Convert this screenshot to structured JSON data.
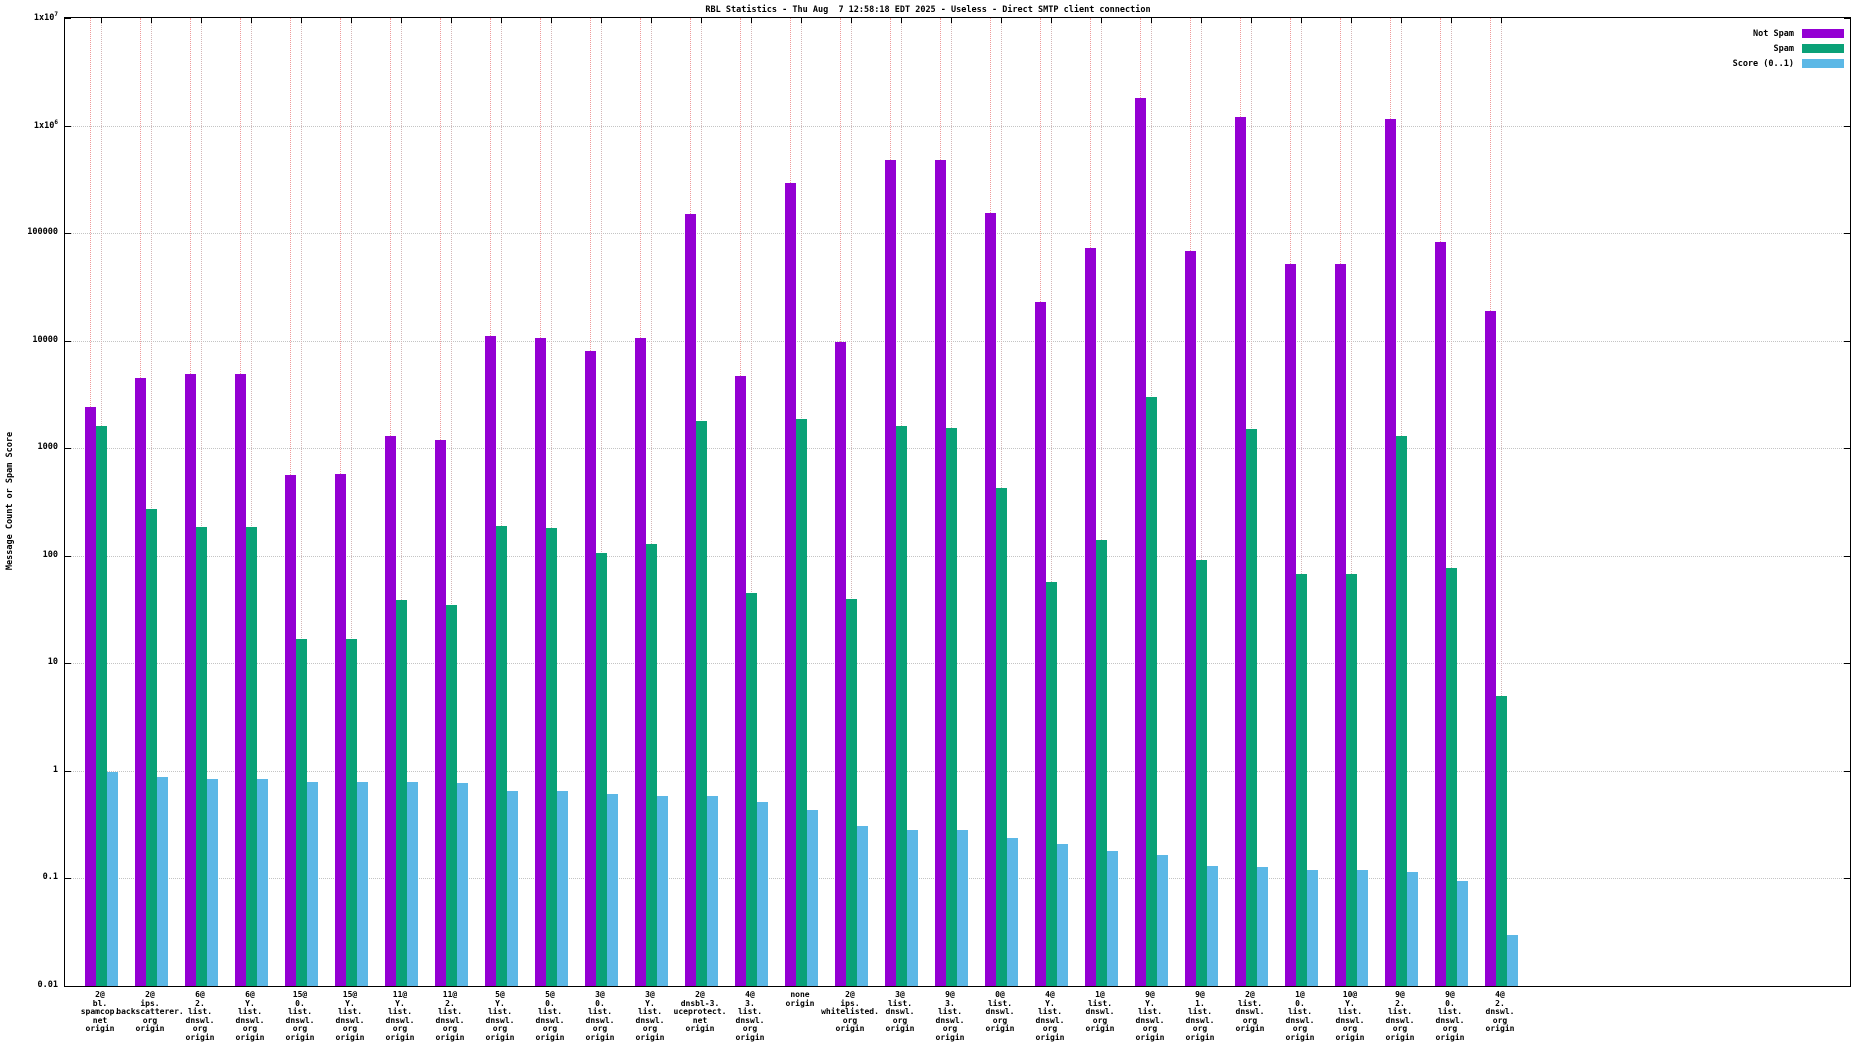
{
  "title": "RBL Statistics - Thu Aug  7 12:58:18 EDT 2025 - Useless - Direct SMTP client connection",
  "axes": {
    "ylabel": "Message Count or Spam Score"
  },
  "chart_data": {
    "type": "bar",
    "yscale": "log",
    "ylim": [
      0.01,
      10000000
    ],
    "grid": true,
    "legend_position": "top-right-inside",
    "ytick_labels": [
      "1x10^7",
      "1x10^6",
      "100000",
      "10000",
      "1000",
      "100",
      "10",
      "1",
      "0.1",
      "0.01"
    ],
    "categories": [
      [
        "2@",
        "bl.",
        "spamcop.",
        "net",
        "origin"
      ],
      [
        "2@",
        "ips.",
        "backscatterer.",
        "org",
        "origin"
      ],
      [
        "6@",
        "2.",
        "list.",
        "dnswl.",
        "org",
        "origin"
      ],
      [
        "6@",
        "Y.",
        "list.",
        "dnswl.",
        "org",
        "origin"
      ],
      [
        "15@",
        "0.",
        "list.",
        "dnswl.",
        "org",
        "origin"
      ],
      [
        "15@",
        "Y.",
        "list.",
        "dnswl.",
        "org",
        "origin"
      ],
      [
        "11@",
        "Y.",
        "list.",
        "dnswl.",
        "org",
        "origin"
      ],
      [
        "11@",
        "2.",
        "list.",
        "dnswl.",
        "org",
        "origin"
      ],
      [
        "5@",
        "Y.",
        "list.",
        "dnswl.",
        "org",
        "origin"
      ],
      [
        "5@",
        "0.",
        "list.",
        "dnswl.",
        "org",
        "origin"
      ],
      [
        "3@",
        "0.",
        "list.",
        "dnswl.",
        "org",
        "origin"
      ],
      [
        "3@",
        "Y.",
        "list.",
        "dnswl.",
        "org",
        "origin"
      ],
      [
        "2@",
        "dnsbl-3.",
        "uceprotect.",
        "net",
        "origin"
      ],
      [
        "4@",
        "3.",
        "list.",
        "dnswl.",
        "org",
        "origin"
      ],
      [
        "none",
        "origin"
      ],
      [
        "2@",
        "ips.",
        "whitelisted.",
        "org",
        "origin"
      ],
      [
        "3@",
        "list.",
        "dnswl.",
        "org",
        "origin"
      ],
      [
        "9@",
        "3.",
        "list.",
        "dnswl.",
        "org",
        "origin"
      ],
      [
        "0@",
        "list.",
        "dnswl.",
        "org",
        "origin"
      ],
      [
        "4@",
        "Y.",
        "list.",
        "dnswl.",
        "org",
        "origin"
      ],
      [
        "1@",
        "list.",
        "dnswl.",
        "org",
        "origin"
      ],
      [
        "9@",
        "Y.",
        "list.",
        "dnswl.",
        "org",
        "origin"
      ],
      [
        "9@",
        "1.",
        "list.",
        "dnswl.",
        "org",
        "origin"
      ],
      [
        "2@",
        "list.",
        "dnswl.",
        "org",
        "origin"
      ],
      [
        "1@",
        "0.",
        "list.",
        "dnswl.",
        "org",
        "origin"
      ],
      [
        "10@",
        "Y.",
        "list.",
        "dnswl.",
        "org",
        "origin"
      ],
      [
        "9@",
        "2.",
        "list.",
        "dnswl.",
        "org",
        "origin"
      ],
      [
        "9@",
        "0.",
        "list.",
        "dnswl.",
        "org",
        "origin"
      ],
      [
        "4@",
        "2.",
        "dnswl.",
        "org",
        "origin"
      ]
    ],
    "series": [
      {
        "name": "Not Spam",
        "color": "#9400d3",
        "values": [
          2400,
          4500,
          4900,
          4900,
          560,
          570,
          1300,
          1200,
          11000,
          10500,
          8000,
          10500,
          150000,
          4700,
          290000,
          9800,
          480000,
          480000,
          155000,
          23000,
          72000,
          1800000,
          68000,
          1200000,
          52000,
          52000,
          1150000,
          82000,
          19000
        ]
      },
      {
        "name": "Spam",
        "color": "#0aa177",
        "values": [
          1600,
          270,
          185,
          185,
          17,
          17,
          39,
          35,
          190,
          180,
          107,
          130,
          1800,
          45,
          1850,
          40,
          1600,
          1550,
          430,
          57,
          140,
          3000,
          92,
          1500,
          68,
          67,
          1300,
          77,
          5
        ]
      },
      {
        "name": "Score (0..1)",
        "color": "#5cb8e6",
        "values": [
          0.97,
          0.88,
          0.84,
          0.84,
          0.79,
          0.79,
          0.78,
          0.77,
          0.65,
          0.65,
          0.61,
          0.59,
          0.58,
          0.51,
          0.43,
          0.31,
          0.28,
          0.28,
          0.24,
          0.21,
          0.18,
          0.165,
          0.13,
          0.128,
          0.12,
          0.12,
          0.115,
          0.095,
          0.03
        ]
      }
    ]
  },
  "colors": {
    "not_spam": "#9400d3",
    "spam": "#0aa177",
    "score": "#5cb8e6",
    "h_grid": "#c4c4c4",
    "v_grid": "#d4b6b6",
    "impulse": "#ef9a9a"
  }
}
